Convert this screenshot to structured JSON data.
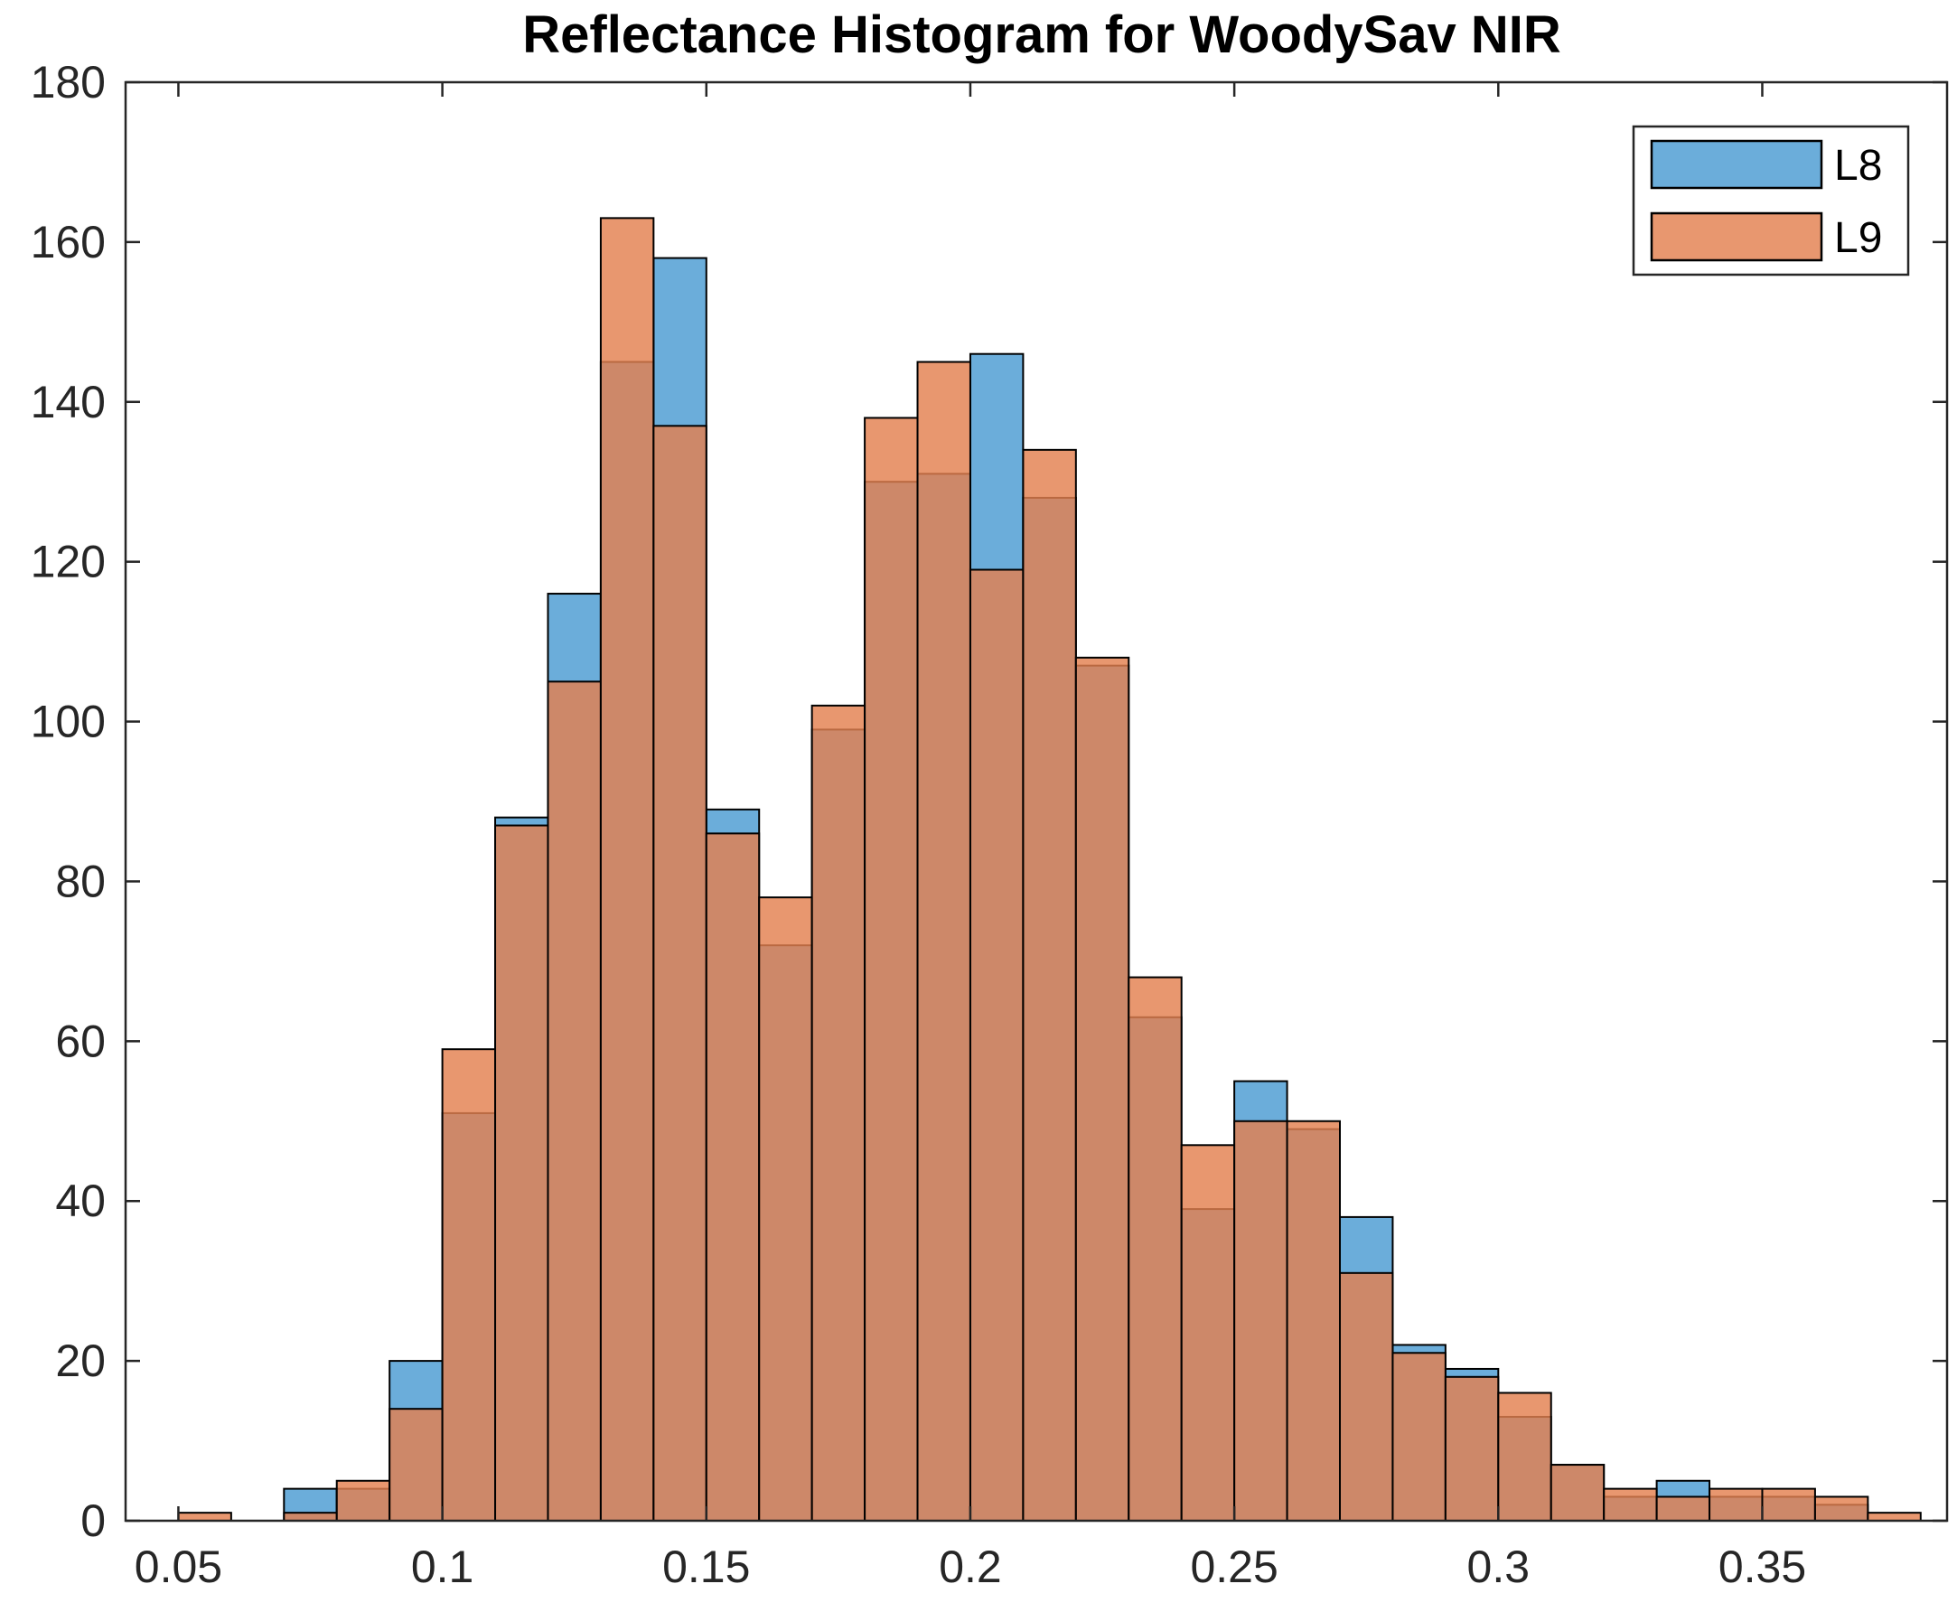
{
  "chart_data": {
    "type": "bar",
    "title": "Reflectance Histogram for WoodySav NIR",
    "xlabel": "",
    "ylabel": "",
    "xlim": [
      0.04,
      0.385
    ],
    "ylim": [
      0,
      180
    ],
    "xticks": [
      0.05,
      0.1,
      0.15,
      0.2,
      0.25,
      0.3,
      0.35
    ],
    "xtick_labels": [
      "0.05",
      "0.1",
      "0.15",
      "0.2",
      "0.25",
      "0.3",
      "0.35"
    ],
    "yticks": [
      0,
      20,
      40,
      60,
      80,
      100,
      120,
      140,
      160,
      180
    ],
    "ytick_labels": [
      "0",
      "20",
      "40",
      "60",
      "80",
      "100",
      "120",
      "140",
      "160",
      "180"
    ],
    "grid": false,
    "legend_position": "top-right",
    "bin_edges": [
      0.05,
      0.06,
      0.07,
      0.08,
      0.09,
      0.1,
      0.11,
      0.12,
      0.13,
      0.14,
      0.15,
      0.16,
      0.17,
      0.18,
      0.19,
      0.2,
      0.21,
      0.22,
      0.23,
      0.24,
      0.25,
      0.26,
      0.27,
      0.28,
      0.29,
      0.3,
      0.31,
      0.32,
      0.33,
      0.34,
      0.35,
      0.36,
      0.37,
      0.38
    ],
    "series": [
      {
        "name": "L8",
        "color": "#4A9BD2",
        "values": [
          0,
          0,
          4,
          4,
          20,
          51,
          88,
          116,
          145,
          158,
          89,
          72,
          99,
          130,
          131,
          146,
          128,
          107,
          63,
          39,
          55,
          49,
          38,
          22,
          19,
          13,
          7,
          3,
          5,
          3,
          3,
          2,
          0
        ]
      },
      {
        "name": "L9",
        "color": "#E3804F",
        "values": [
          1,
          0,
          1,
          5,
          14,
          59,
          87,
          105,
          163,
          137,
          86,
          78,
          102,
          138,
          145,
          119,
          134,
          108,
          68,
          47,
          50,
          50,
          31,
          21,
          18,
          16,
          7,
          4,
          3,
          4,
          4,
          3,
          1
        ]
      }
    ]
  }
}
